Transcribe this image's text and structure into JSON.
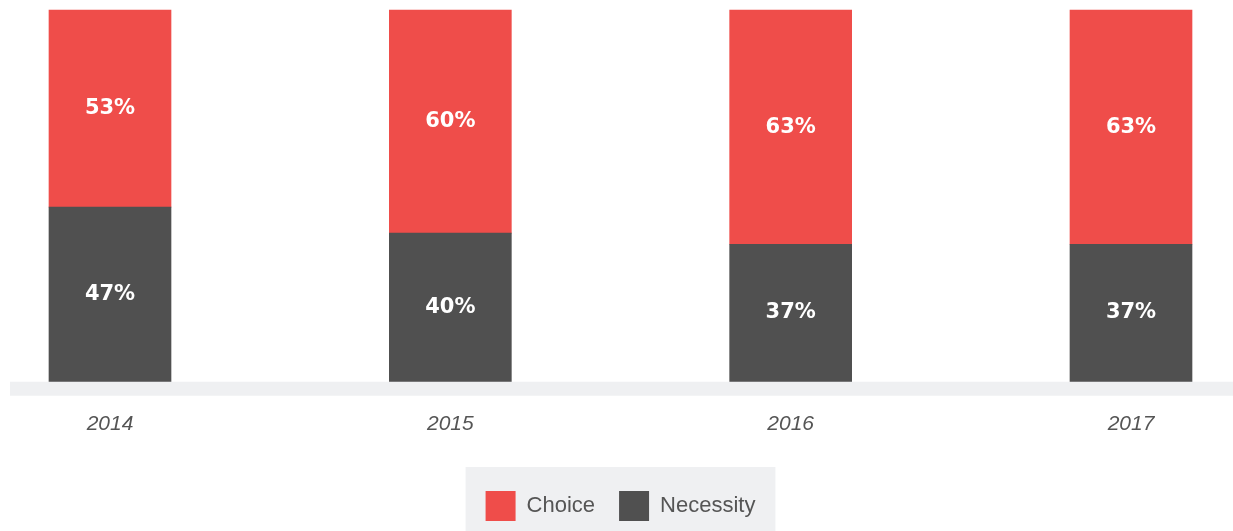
{
  "chart_data": {
    "type": "bar",
    "stacked": true,
    "categories": [
      "2014",
      "2015",
      "2016",
      "2017"
    ],
    "series": [
      {
        "name": "Necessity",
        "color": "#505050",
        "values": [
          47,
          40,
          37,
          37
        ],
        "value_labels": [
          "47%",
          "40%",
          "37%",
          "37%"
        ]
      },
      {
        "name": "Choice",
        "color": "#ef4d4a",
        "values": [
          53,
          60,
          63,
          63
        ],
        "value_labels": [
          "53%",
          "60%",
          "63%",
          "63%"
        ]
      }
    ],
    "legend": "bottom",
    "grid": false,
    "tick_labels": "x"
  }
}
